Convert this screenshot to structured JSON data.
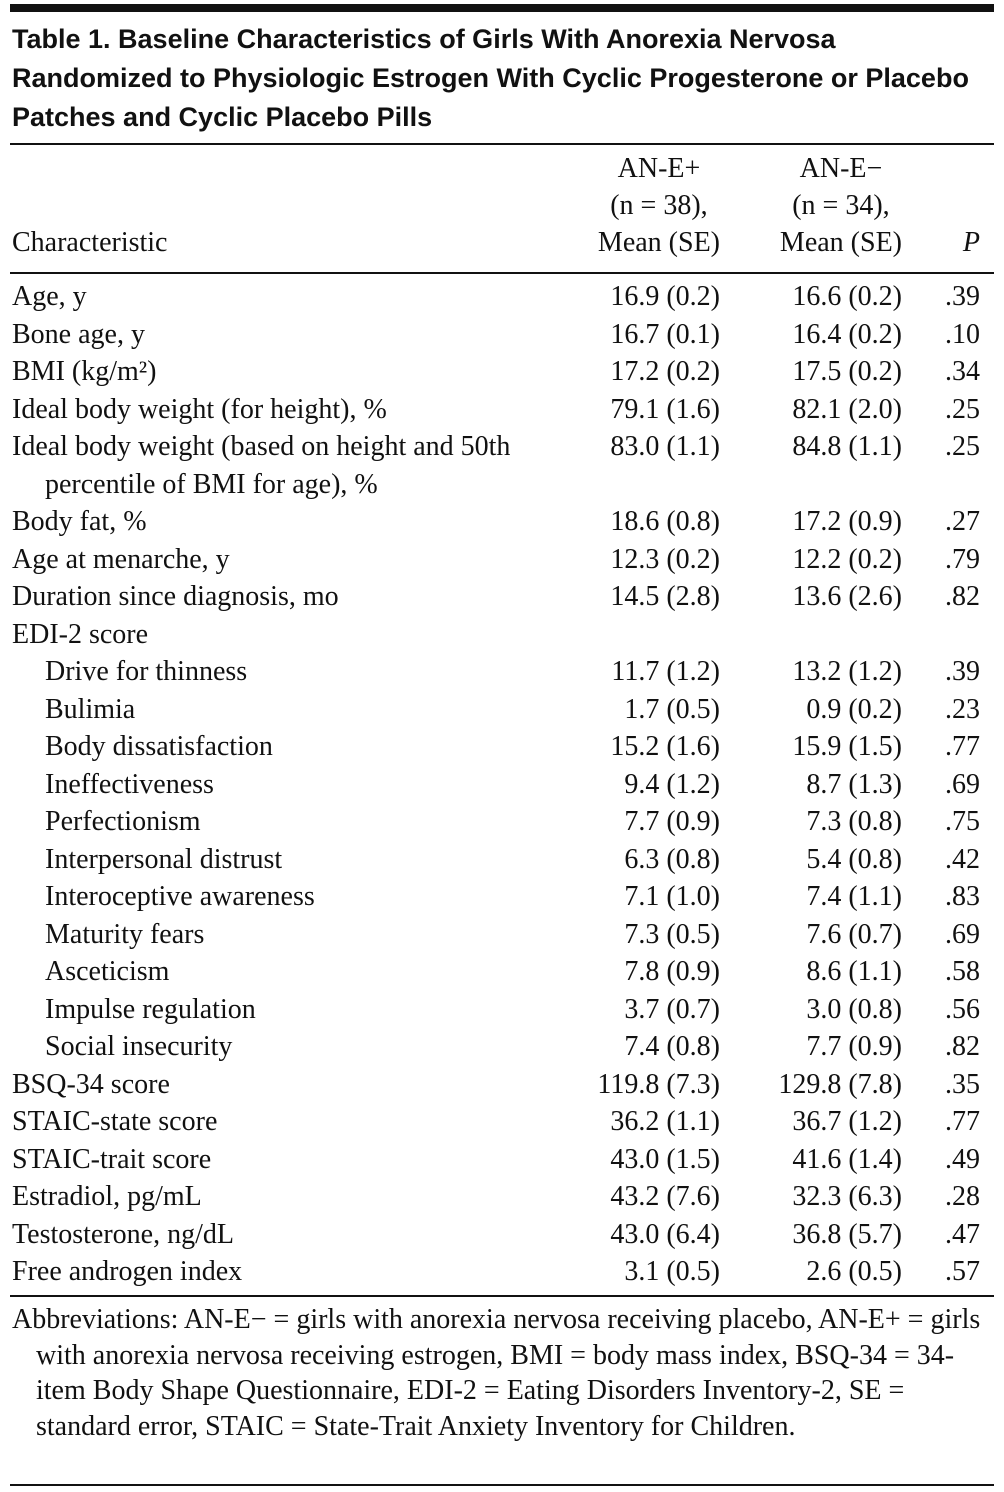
{
  "title": "Table 1. Baseline Characteristics of Girls With Anorexia Nervosa Randomized to Physiologic Estrogen With Cyclic Progesterone or Placebo Patches and Cyclic Placebo Pills",
  "header": {
    "characteristic": "Characteristic",
    "groups": [
      [
        "AN-E+",
        "(n = 38),",
        "Mean (SE)"
      ],
      [
        "AN-E−",
        "(n = 34),",
        "Mean (SE)"
      ]
    ],
    "p": "P"
  },
  "rows": [
    {
      "label": "Age, y",
      "cells": [
        "16.9 (0.2)",
        "16.6 (0.2)",
        ".39"
      ]
    },
    {
      "label": "Bone age, y",
      "cells": [
        "16.7 (0.1)",
        "16.4 (0.2)",
        ".10"
      ]
    },
    {
      "label": "BMI (kg/m²)",
      "cells": [
        "17.2 (0.2)",
        "17.5 (0.2)",
        ".34"
      ]
    },
    {
      "label": "Ideal body weight (for height), %",
      "cells": [
        "79.1 (1.6)",
        "82.1 (2.0)",
        ".25"
      ]
    },
    {
      "label": "Ideal body weight (based on height and 50th percentile of BMI for age), %",
      "cells": [
        "83.0 (1.1)",
        "84.8 (1.1)",
        ".25"
      ]
    },
    {
      "label": "Body fat, %",
      "cells": [
        "18.6 (0.8)",
        "17.2 (0.9)",
        ".27"
      ]
    },
    {
      "label": "Age at menarche, y",
      "cells": [
        "12.3 (0.2)",
        "12.2 (0.2)",
        ".79"
      ]
    },
    {
      "label": "Duration since diagnosis, mo",
      "cells": [
        "14.5 (2.8)",
        "13.6 (2.6)",
        ".82"
      ]
    },
    {
      "label": "EDI-2 score",
      "subrows": [
        {
          "label": "Drive for thinness",
          "cells": [
            "11.7 (1.2)",
            "13.2 (1.2)",
            ".39"
          ]
        },
        {
          "label": "Bulimia",
          "cells": [
            "1.7 (0.5)",
            "0.9 (0.2)",
            ".23"
          ]
        },
        {
          "label": "Body dissatisfaction",
          "cells": [
            "15.2 (1.6)",
            "15.9 (1.5)",
            ".77"
          ]
        },
        {
          "label": "Ineffectiveness",
          "cells": [
            "9.4 (1.2)",
            "8.7 (1.3)",
            ".69"
          ]
        },
        {
          "label": "Perfectionism",
          "cells": [
            "7.7 (0.9)",
            "7.3 (0.8)",
            ".75"
          ]
        },
        {
          "label": "Interpersonal distrust",
          "cells": [
            "6.3 (0.8)",
            "5.4 (0.8)",
            ".42"
          ]
        },
        {
          "label": "Interoceptive awareness",
          "cells": [
            "7.1 (1.0)",
            "7.4 (1.1)",
            ".83"
          ]
        },
        {
          "label": "Maturity fears",
          "cells": [
            "7.3 (0.5)",
            "7.6 (0.7)",
            ".69"
          ]
        },
        {
          "label": "Asceticism",
          "cells": [
            "7.8 (0.9)",
            "8.6 (1.1)",
            ".58"
          ]
        },
        {
          "label": "Impulse regulation",
          "cells": [
            "3.7 (0.7)",
            "3.0 (0.8)",
            ".56"
          ]
        },
        {
          "label": "Social insecurity",
          "cells": [
            "7.4 (0.8)",
            "7.7 (0.9)",
            ".82"
          ]
        }
      ]
    },
    {
      "label": "BSQ-34 score",
      "cells": [
        "119.8 (7.3)",
        "129.8 (7.8)",
        ".35"
      ]
    },
    {
      "label": "STAIC-state score",
      "cells": [
        "36.2 (1.1)",
        "36.7 (1.2)",
        ".77"
      ]
    },
    {
      "label": "STAIC-trait score",
      "cells": [
        "43.0 (1.5)",
        "41.6 (1.4)",
        ".49"
      ]
    },
    {
      "label": "Estradiol, pg/mL",
      "cells": [
        "43.2 (7.6)",
        "32.3 (6.3)",
        ".28"
      ]
    },
    {
      "label": "Testosterone, ng/dL",
      "cells": [
        "43.0 (6.4)",
        "36.8 (5.7)",
        ".47"
      ]
    },
    {
      "label": "Free androgen index",
      "cells": [
        "3.1 (0.5)",
        "2.6 (0.5)",
        ".57"
      ]
    }
  ],
  "footnote": "Abbreviations: AN-E− = girls with anorexia nervosa receiving placebo, AN-E+ = girls with anorexia nervosa receiving estrogen, BMI = body mass index, BSQ-34 = 34-item Body Shape Questionnaire, EDI-2 = Eating Disorders Inventory-2, SE = standard error, STAIC = State-Trait Anxiety Inventory for Children."
}
